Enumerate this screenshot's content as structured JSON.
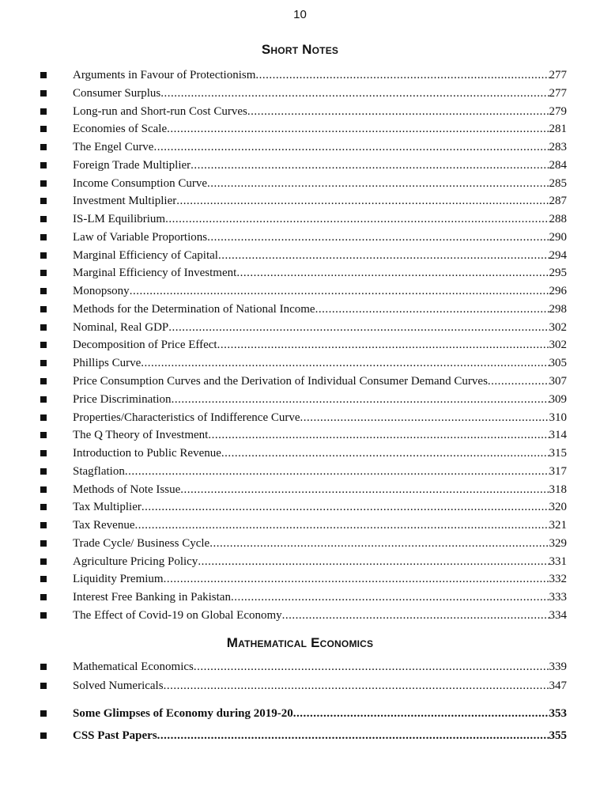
{
  "page_number": "10",
  "sections": [
    {
      "heading": "Short Notes",
      "items": [
        {
          "title": "Arguments in Favour of Protectionism",
          "page": "277"
        },
        {
          "title": "Consumer Surplus",
          "page": "277"
        },
        {
          "title": "Long-run and Short-run Cost Curves",
          "page": "279"
        },
        {
          "title": "Economies of Scale",
          "page": "281"
        },
        {
          "title": "The Engel Curve",
          "page": "283"
        },
        {
          "title": "Foreign Trade Multiplier",
          "page": "284"
        },
        {
          "title": "Income Consumption Curve",
          "page": "285"
        },
        {
          "title": "Investment Multiplier",
          "page": "287"
        },
        {
          "title": "IS-LM Equilibrium",
          "page": "288"
        },
        {
          "title": "Law of Variable Proportions",
          "page": "290"
        },
        {
          "title": "Marginal Efficiency of Capital",
          "page": "294"
        },
        {
          "title": "Marginal Efficiency of Investment",
          "page": "295"
        },
        {
          "title": "Monopsony",
          "page": "296"
        },
        {
          "title": "Methods for the Determination of National Income",
          "page": "298"
        },
        {
          "title": "Nominal, Real GDP",
          "page": "302"
        },
        {
          "title": "Decomposition of Price Effect",
          "page": "302"
        },
        {
          "title": "Phillips Curve",
          "page": "305"
        },
        {
          "title": "Price Consumption Curves and the Derivation of Individual Consumer Demand Curves",
          "page": "307"
        },
        {
          "title": "Price Discrimination",
          "page": "309"
        },
        {
          "title": "Properties/Characteristics of Indifference Curve",
          "page": "310"
        },
        {
          "title": "The Q Theory of Investment",
          "page": "314"
        },
        {
          "title": "Introduction to Public Revenue",
          "page": "315"
        },
        {
          "title": "Stagflation",
          "page": "317"
        },
        {
          "title": "Methods of Note Issue",
          "page": "318"
        },
        {
          "title": "Tax Multiplier",
          "page": "320"
        },
        {
          "title": "Tax Revenue",
          "page": "321"
        },
        {
          "title": "Trade Cycle/ Business Cycle",
          "page": "329"
        },
        {
          "title": "Agriculture Pricing Policy",
          "page": "331"
        },
        {
          "title": "Liquidity Premium",
          "page": "332"
        },
        {
          "title": "Interest Free Banking in Pakistan",
          "page": "333"
        },
        {
          "title": "The Effect of Covid-19 on Global Economy",
          "page": "334"
        }
      ]
    },
    {
      "heading": "Mathematical Economics",
      "items": [
        {
          "title": "Mathematical Economics",
          "page": "339"
        },
        {
          "title": "Solved Numericals",
          "page": "347"
        }
      ]
    }
  ],
  "extra_items": [
    {
      "title": "Some Glimpses of Economy during 2019-20",
      "page": "353"
    },
    {
      "title": "CSS Past Papers",
      "page": "355"
    }
  ]
}
